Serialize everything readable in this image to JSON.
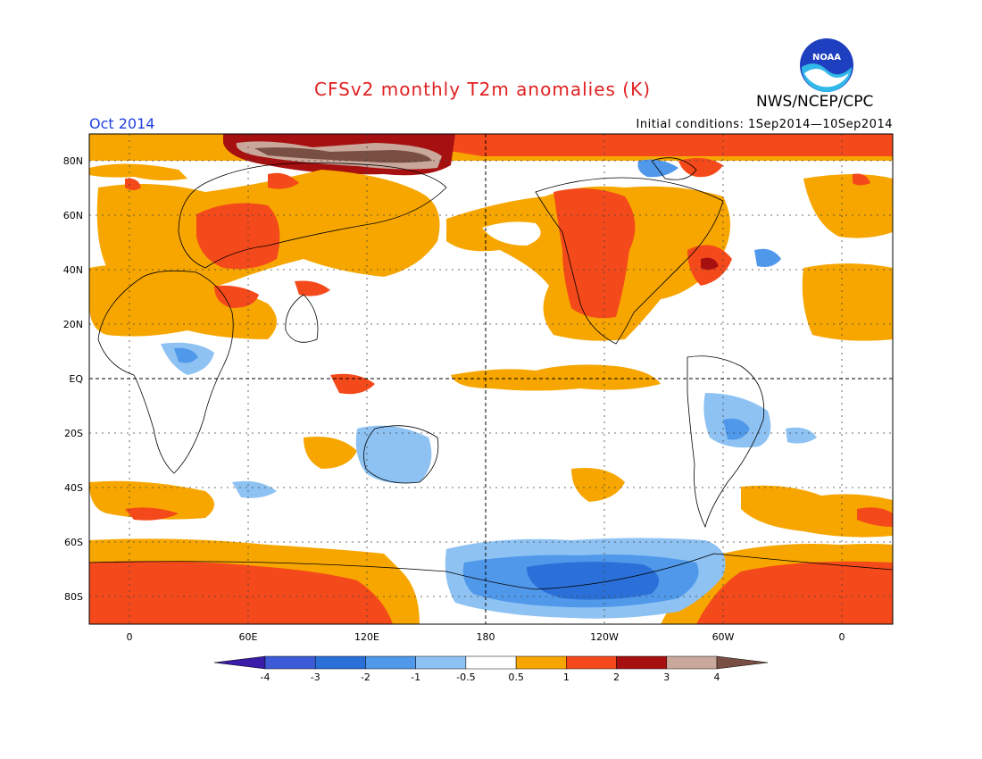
{
  "title": "CFSv2 monthly T2m anomalies (K)",
  "agency": "NWS/NCEP/CPC",
  "logo_text": "NOAA",
  "valid_month": "Oct 2014",
  "initial_conditions": "Initial conditions: 1Sep2014—10Sep2014",
  "lat_labels": [
    "80N",
    "60N",
    "40N",
    "20N",
    "EQ",
    "20S",
    "40S",
    "60S",
    "80S"
  ],
  "lon_labels": [
    "0",
    "60E",
    "120E",
    "180",
    "120W",
    "60W",
    "0"
  ],
  "colorbar": {
    "labels": [
      "-4",
      "-3",
      "-2",
      "-1",
      "-0.5",
      "0.5",
      "1",
      "2",
      "3",
      "4"
    ],
    "colors": [
      "#3a1ca8",
      "#3d5bd6",
      "#2a70d8",
      "#4f98ea",
      "#8ec2f3",
      "#ffffff",
      "#f7a600",
      "#f4491a",
      "#a61010",
      "#c9a79b",
      "#7a4f43"
    ]
  },
  "colors": {
    "warm_05": "#f7a600",
    "warm_1": "#f4491a",
    "warm_2": "#a61010",
    "warm_3": "#c9a79b",
    "warm_4": "#7a4f43",
    "cool_05": "#8ec2f3",
    "cool_1": "#4f98ea",
    "cool_2": "#2a70d8",
    "cool_3": "#3d5bd6"
  }
}
